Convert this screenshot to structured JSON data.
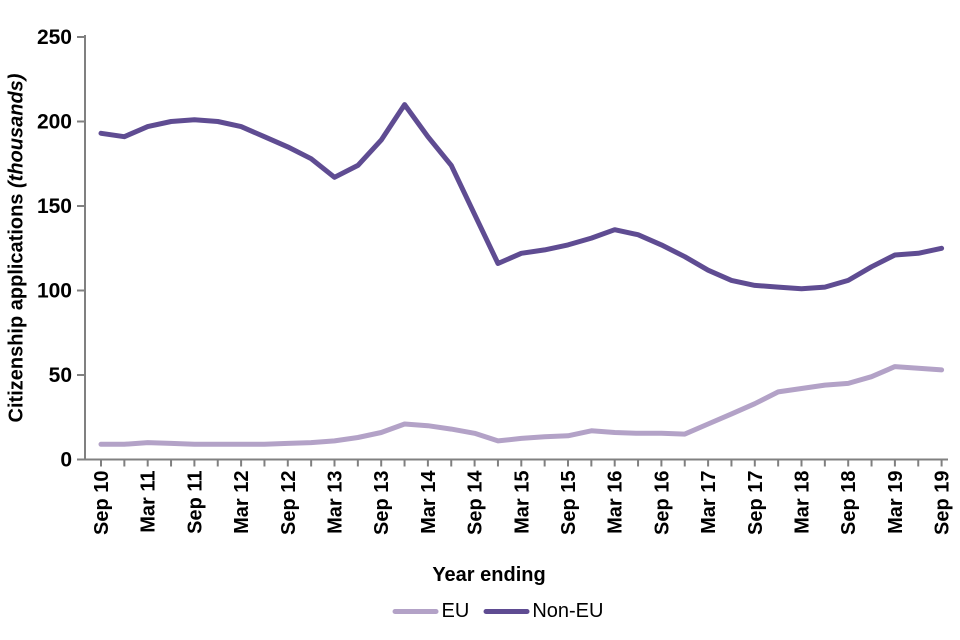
{
  "chart_data": {
    "type": "line",
    "title": "",
    "ylabel": "Citizenship applications",
    "ylabel_suffix_italic": "(thousands)",
    "xlabel": "Year ending",
    "ylim": [
      0,
      250
    ],
    "yticks": [
      0,
      50,
      100,
      150,
      200,
      250
    ],
    "grid": false,
    "legend_position": "bottom",
    "axis_color": "#808080",
    "x_tick_labels": [
      "Sep 10",
      "Mar 11",
      "Sep 11",
      "Mar 12",
      "Sep 12",
      "Mar 13",
      "Sep 13",
      "Mar 14",
      "Sep 14",
      "Mar 15",
      "Sep 15",
      "Mar 16",
      "Sep 16",
      "Mar 17",
      "Sep 17",
      "Mar 18",
      "Sep 18",
      "Mar 19",
      "Sep 19"
    ],
    "points_per_labelled_tick": 2,
    "series": [
      {
        "name": "EU",
        "color": "#b3a2c7",
        "values": [
          9,
          9,
          10,
          9.5,
          9,
          9,
          9,
          9,
          9.5,
          10,
          11,
          13,
          16,
          21,
          20,
          18,
          15.5,
          11,
          12.5,
          13.5,
          14,
          17,
          16,
          15.5,
          15.5,
          15,
          21,
          27,
          33,
          40,
          42,
          44,
          45,
          49,
          55,
          54,
          53
        ]
      },
      {
        "name": "Non-EU",
        "color": "#5f4c92",
        "values": [
          193,
          191,
          197,
          200,
          201,
          200,
          197,
          191,
          185,
          178,
          167,
          174,
          189,
          210,
          191,
          174,
          145,
          116,
          122,
          124,
          127,
          131,
          136,
          133,
          127,
          120,
          112,
          106,
          103,
          102,
          101,
          102,
          106,
          114,
          121,
          122,
          125
        ]
      }
    ]
  }
}
